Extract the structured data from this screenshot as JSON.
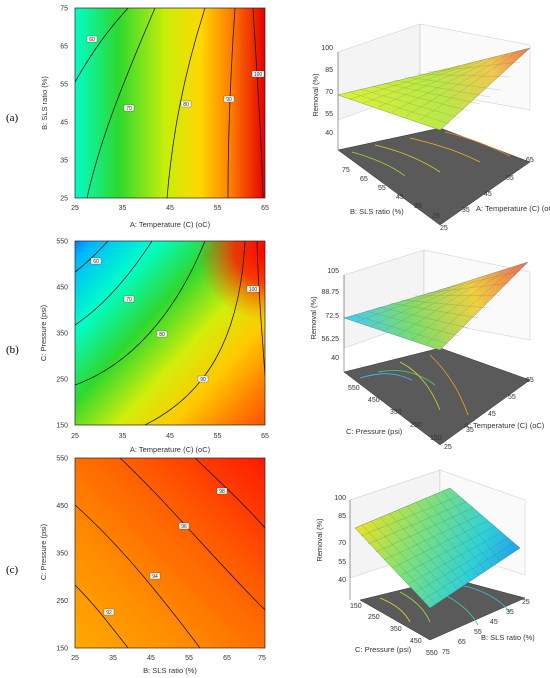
{
  "panels": [
    {
      "label": "(a)",
      "contour": {
        "xlabel": "A: Temperature (C) (oC)",
        "ylabel": "B: SLS ratio (%)",
        "x_ticks": [
          "25",
          "35",
          "45",
          "55",
          "65"
        ],
        "y_ticks": [
          "25",
          "35",
          "45",
          "55",
          "65",
          "75"
        ],
        "level_labels": [
          "60",
          "70",
          "80",
          "90",
          "100"
        ]
      },
      "surface": {
        "zlabel": "Removal (%)",
        "z_ticks": [
          "40",
          "55",
          "70",
          "85",
          "100"
        ],
        "right_label": "A: Temperature (C) (oC)",
        "right_ticks": [
          "25",
          "35",
          "45",
          "55",
          "65"
        ],
        "left_label": "B: SLS ratio (%)",
        "left_ticks": [
          "75",
          "65",
          "55",
          "45",
          "35",
          "25"
        ]
      }
    },
    {
      "label": "(b)",
      "contour": {
        "xlabel": "A: Temperature (C) (oC)",
        "ylabel": "C: Pressure (psi)",
        "x_ticks": [
          "25",
          "35",
          "45",
          "55",
          "65"
        ],
        "y_ticks": [
          "150",
          "250",
          "350",
          "450",
          "550"
        ],
        "level_labels": [
          "60",
          "70",
          "80",
          "90",
          "100"
        ]
      },
      "surface": {
        "zlabel": "Removal (%)",
        "z_ticks": [
          "40",
          "56.25",
          "72.5",
          "88.75",
          "105"
        ],
        "right_label": "A: Temperature (C) (oC)",
        "right_ticks": [
          "25",
          "35",
          "45",
          "55",
          "65"
        ],
        "left_label": "C: Pressure (psi)",
        "left_ticks": [
          "550",
          "450",
          "350",
          "250",
          "150"
        ]
      }
    },
    {
      "label": "(c)",
      "contour": {
        "xlabel": "B: SLS ratio (%)",
        "ylabel": "C: Pressure (psi)",
        "x_ticks": [
          "25",
          "35",
          "45",
          "55",
          "65",
          "75"
        ],
        "y_ticks": [
          "150",
          "250",
          "350",
          "450",
          "550"
        ],
        "level_labels": [
          "92",
          "94",
          "96",
          "98"
        ]
      },
      "surface": {
        "zlabel": "Removal (%)",
        "z_ticks": [
          "40",
          "55",
          "70",
          "85",
          "100"
        ],
        "right_label": "B: SLS ratio (%)",
        "right_ticks": [
          "25",
          "35",
          "45",
          "55",
          "65",
          "75"
        ],
        "left_label": "C: Pressure (psi)",
        "left_ticks": [
          "150",
          "250",
          "350",
          "450",
          "550"
        ]
      }
    }
  ],
  "chart_data": [
    {
      "type": "heatmap",
      "panel": "(a)",
      "x_name": "A: Temperature (C) (oC)",
      "y_name": "B: SLS ratio (%)",
      "xlim": [
        25,
        65
      ],
      "ylim": [
        25,
        75
      ],
      "contour_levels": [
        60,
        70,
        80,
        90,
        100
      ],
      "z_approx": [
        {
          "x": 25,
          "y": 75,
          "z": 55
        },
        {
          "x": 25,
          "y": 25,
          "z": 63
        },
        {
          "x": 45,
          "y": 50,
          "z": 80
        },
        {
          "x": 57,
          "y": 50,
          "z": 90
        },
        {
          "x": 65,
          "y": 25,
          "z": 103
        }
      ],
      "colormap": "rainbow-blue-to-red"
    },
    {
      "type": "heatmap",
      "panel": "(b)",
      "x_name": "A: Temperature (C) (oC)",
      "y_name": "C: Pressure (psi)",
      "xlim": [
        25,
        65
      ],
      "ylim": [
        150,
        550
      ],
      "contour_levels": [
        60,
        70,
        80,
        90,
        100
      ],
      "z_approx": [
        {
          "x": 25,
          "y": 550,
          "z": 55
        },
        {
          "x": 25,
          "y": 150,
          "z": 90
        },
        {
          "x": 45,
          "y": 350,
          "z": 82
        },
        {
          "x": 65,
          "y": 450,
          "z": 101
        },
        {
          "x": 65,
          "y": 150,
          "z": 96
        }
      ],
      "colormap": "rainbow-blue-to-red"
    },
    {
      "type": "heatmap",
      "panel": "(c)",
      "x_name": "B: SLS ratio (%)",
      "y_name": "C: Pressure (psi)",
      "xlim": [
        25,
        75
      ],
      "ylim": [
        150,
        550
      ],
      "contour_levels": [
        92,
        94,
        96,
        98
      ],
      "z_approx": [
        {
          "x": 25,
          "y": 150,
          "z": 91
        },
        {
          "x": 50,
          "y": 350,
          "z": 95
        },
        {
          "x": 75,
          "y": 550,
          "z": 99
        }
      ],
      "colormap": "orange-to-red"
    }
  ]
}
